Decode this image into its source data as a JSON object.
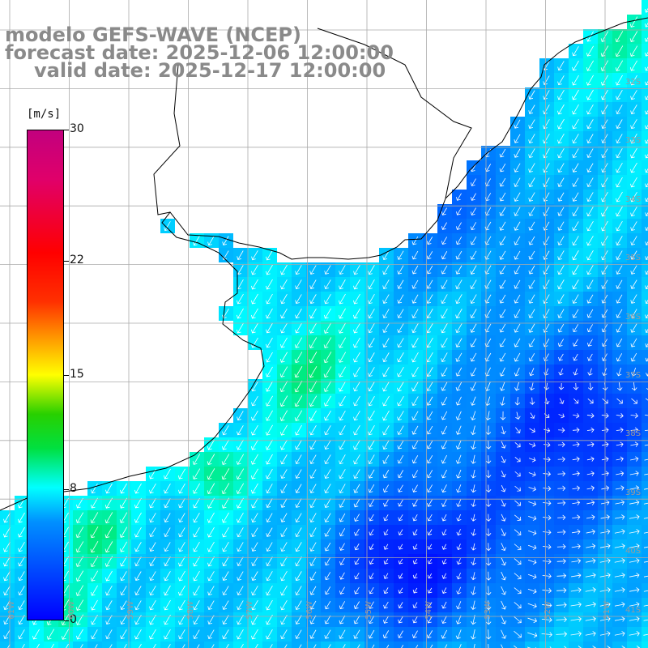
{
  "header": {
    "line1": "modelo GEFS-WAVE (NCEP)",
    "line2": "forecast date: 2025-12-06 12:00:00",
    "line3": "valid date: 2025-12-17 12:00:00"
  },
  "colorbar": {
    "units": "[m/s]",
    "ticks": [
      {
        "label": "30",
        "value": 30
      },
      {
        "label": "22",
        "value": 22
      },
      {
        "label": "15",
        "value": 15
      },
      {
        "label": "8",
        "value": 8
      },
      {
        "label": "0",
        "value": 0
      }
    ]
  },
  "grid": {
    "lat_labels": [
      "32S",
      "33S",
      "34S",
      "35S",
      "36S",
      "37S",
      "38S",
      "39S",
      "40S",
      "41S"
    ],
    "lon_labels": [
      "61W",
      "60W",
      "59W",
      "58W",
      "57W",
      "56W",
      "55W",
      "54W",
      "53W",
      "52W",
      "51W"
    ]
  },
  "colors": {
    "land": "#ffffff",
    "coast": "#000000",
    "grid": "#aaaaaa",
    "arrow": "#ffffff"
  }
}
